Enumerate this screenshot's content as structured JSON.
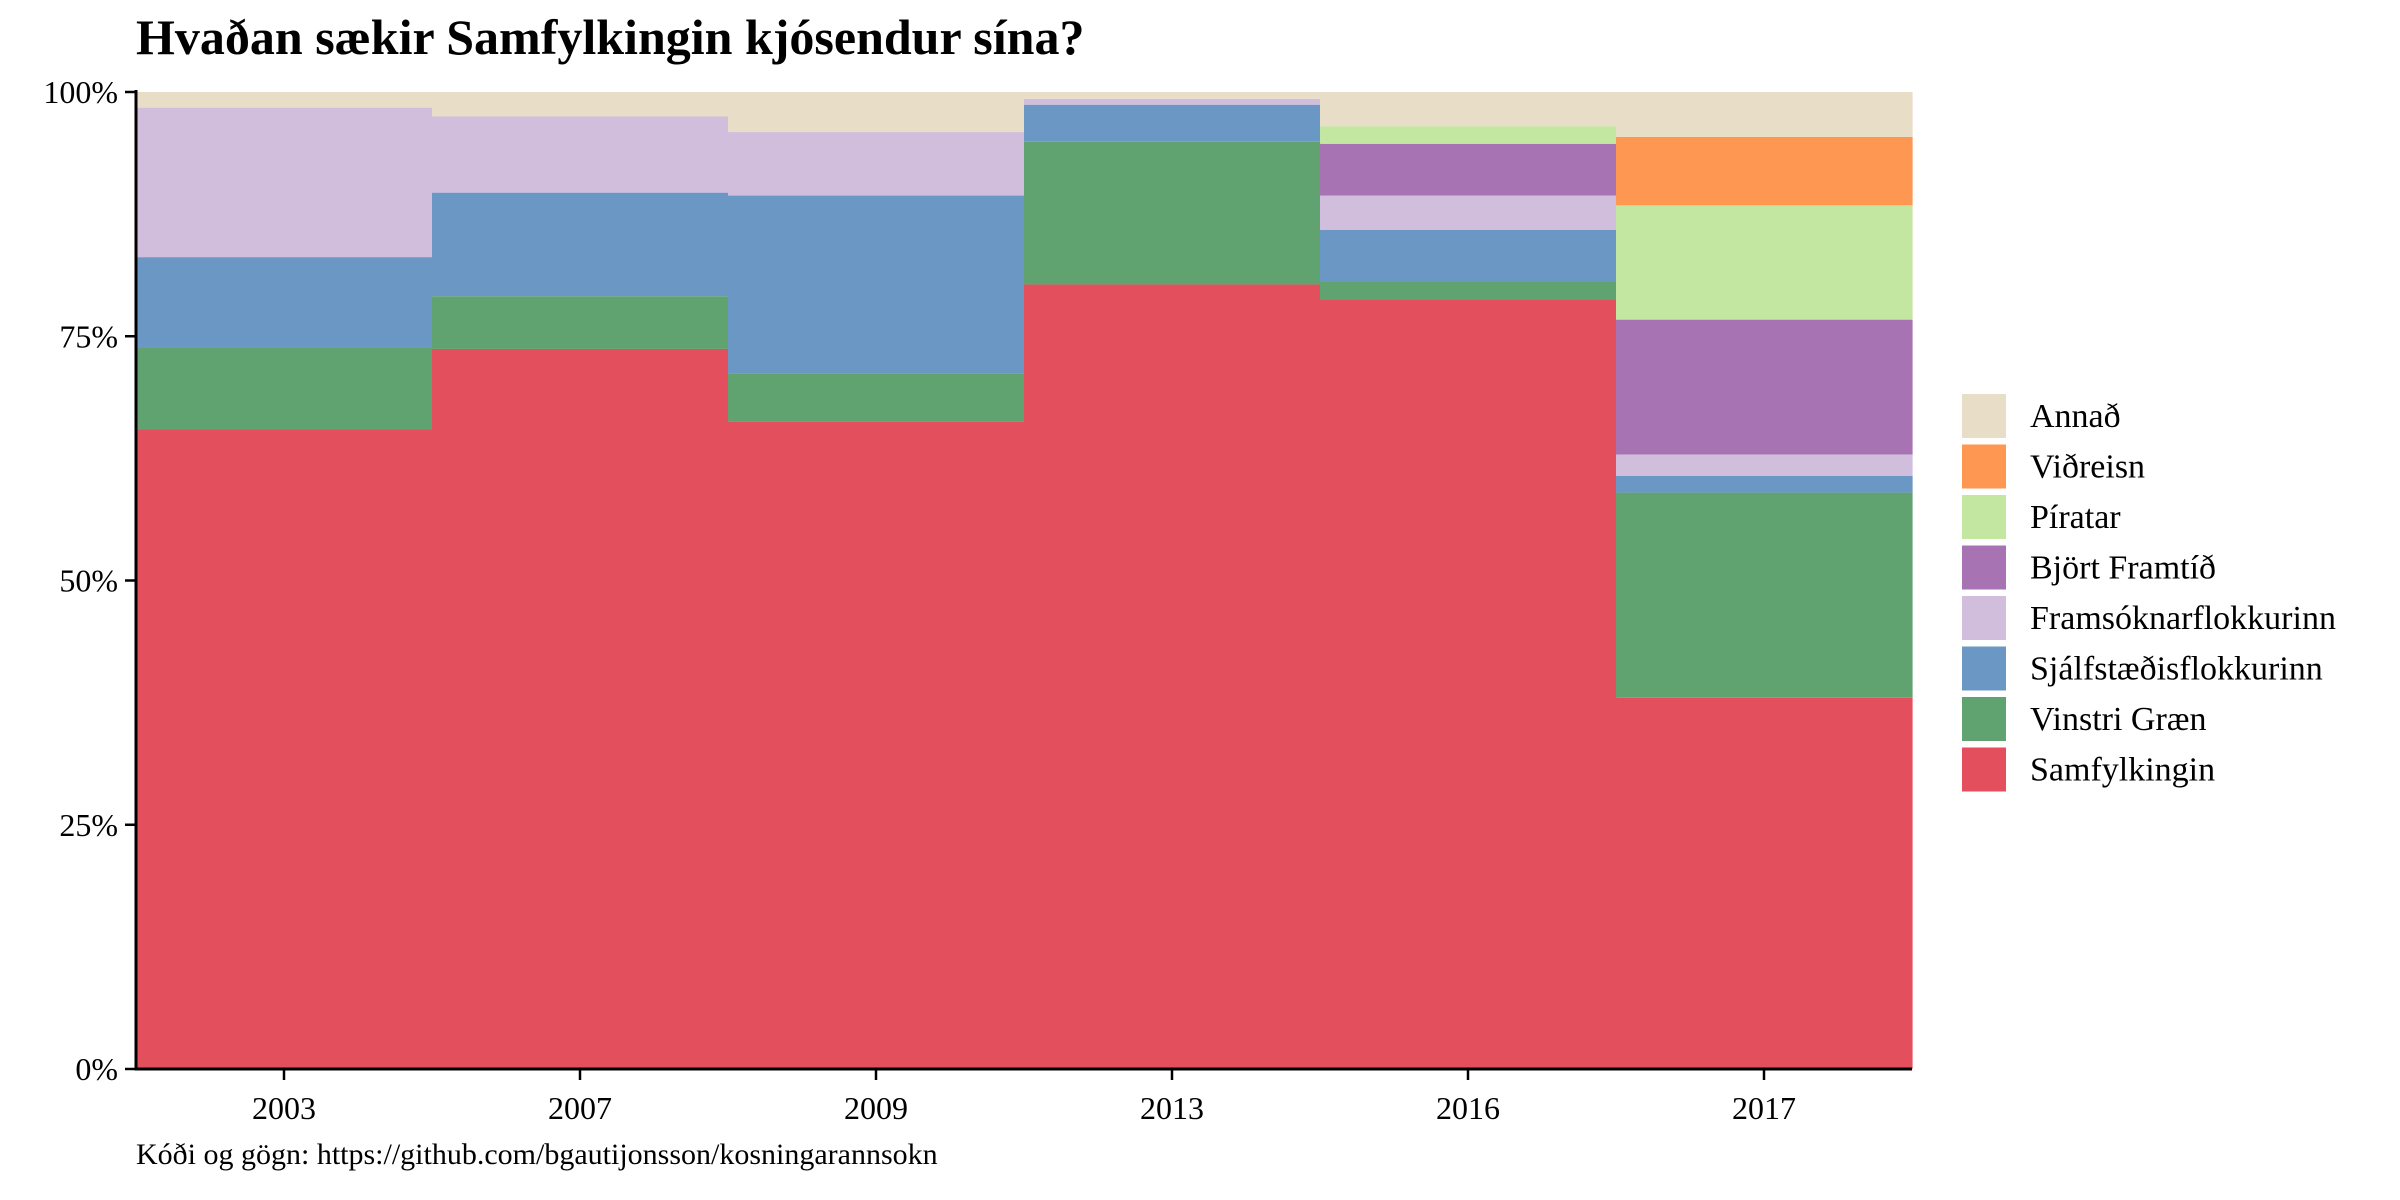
{
  "chart_data": {
    "type": "bar",
    "stacked": true,
    "normalized": true,
    "title": "Hvaðan sækir Samfylkingin kjósendur sína?",
    "caption": "Kóði og gögn: https://github.com/bgautijonsson/kosningarannsokn",
    "xlabel": "",
    "ylabel": "",
    "ylim": [
      0,
      1
    ],
    "yticks": [
      0,
      0.25,
      0.5,
      0.75,
      1
    ],
    "ytick_labels": [
      "0%",
      "25%",
      "50%",
      "75%",
      "100%"
    ],
    "legend_position": "right",
    "categories": [
      "2003",
      "2007",
      "2009",
      "2013",
      "2016",
      "2017"
    ],
    "series": [
      {
        "name": "Samfylkingin",
        "color": "#e34f5d",
        "values": [
          0.655,
          0.737,
          0.663,
          0.803,
          0.788,
          0.38
        ]
      },
      {
        "name": "Vinstri Græn",
        "color": "#61a370",
        "values": [
          0.083,
          0.054,
          0.049,
          0.146,
          0.018,
          0.21
        ]
      },
      {
        "name": "Sjálfstæðisflokkurinn",
        "color": "#6b97c5",
        "values": [
          0.093,
          0.106,
          0.182,
          0.038,
          0.053,
          0.017
        ]
      },
      {
        "name": "Framsóknarflokkurinn",
        "color": "#d0bedc",
        "values": [
          0.153,
          0.078,
          0.065,
          0.006,
          0.035,
          0.022
        ]
      },
      {
        "name": "Björt Framtíð",
        "color": "#a873b3",
        "values": [
          0,
          0,
          0,
          0,
          0.053,
          0.138
        ]
      },
      {
        "name": "Píratar",
        "color": "#c3e6a0",
        "values": [
          0,
          0,
          0,
          0,
          0.018,
          0.117
        ]
      },
      {
        "name": "Viðreisn",
        "color": "#fd9751",
        "values": [
          0,
          0,
          0,
          0,
          0,
          0.07
        ]
      },
      {
        "name": "Annað",
        "color": "#e8ddc6",
        "values": [
          0.016,
          0.025,
          0.041,
          0.007,
          0.035,
          0.046
        ]
      }
    ],
    "legend_order": [
      "Annað",
      "Viðreisn",
      "Píratar",
      "Björt Framtíð",
      "Framsóknarflokkurinn",
      "Sjálfstæðisflokkurinn",
      "Vinstri Græn",
      "Samfylkingin"
    ]
  }
}
